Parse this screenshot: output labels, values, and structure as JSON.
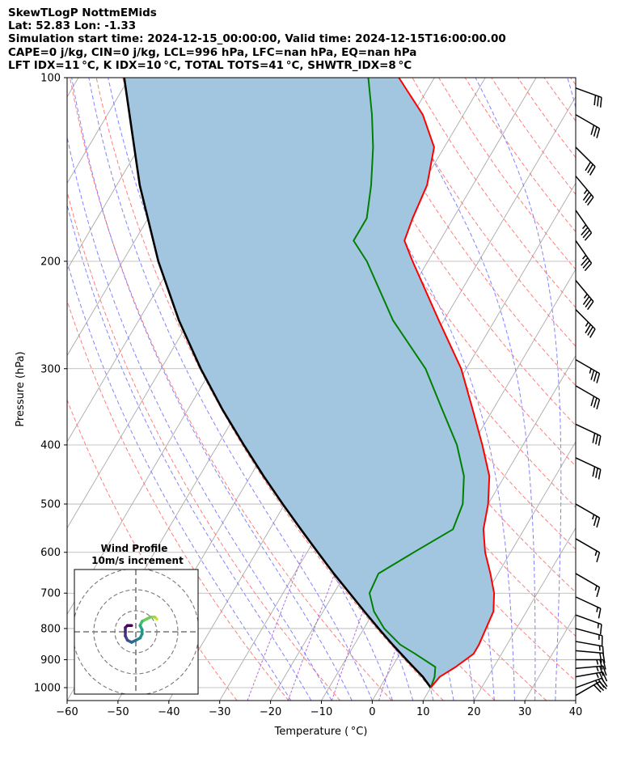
{
  "header": {
    "line1": "SkewTLogP NottmEMids",
    "line2": "Lat: 52.83   Lon: -1.33",
    "line3": "Simulation start time: 2024-12-15_00:00:00, Valid time: 2024-12-15T16:00:00.00",
    "line4": "CAPE=0 j/kg, CIN=0 j/kg, LCL=996 hPa, LFC=nan hPa, EQ=nan hPa",
    "line5": "LFT IDX=11 °C, K IDX=10 °C, TOTAL TOTS=41 °C, SHWTR_IDX=8 °C"
  },
  "chart_data": {
    "type": "line",
    "subtype": "skew-t log-p",
    "xlabel": "Temperature ( °C)",
    "ylabel": "Pressure (hPa)",
    "xlim": [
      -60,
      40
    ],
    "ylim": [
      1050,
      100
    ],
    "x_ticks": [
      "−60",
      "−50",
      "−40",
      "−30",
      "−20",
      "−10",
      "0",
      "10",
      "20",
      "30",
      "40"
    ],
    "y_ticks": [
      "1000",
      "900",
      "800",
      "700",
      "600",
      "500",
      "400",
      "300",
      "200",
      "100"
    ],
    "y_tick_values": [
      1000,
      900,
      800,
      700,
      600,
      500,
      400,
      300,
      200,
      100
    ],
    "grid": true,
    "colors": {
      "temperature": "#ff0000",
      "dewpoint": "#008000",
      "parcel": "#000000",
      "cape_fill": "#a3c6e0",
      "dry_adiabat": "#ff6666",
      "moist_adiabat": "#6d6dff",
      "mixing_ratio": "#9b4bcf",
      "isotherm": "#aaaaaa"
    },
    "series": [
      {
        "key": "temperature",
        "points": [
          [
            1000,
            10.0
          ],
          [
            960,
            10.5
          ],
          [
            925,
            12.5
          ],
          [
            880,
            14.5
          ],
          [
            850,
            14.5
          ],
          [
            800,
            14
          ],
          [
            750,
            13.5
          ],
          [
            700,
            11.5
          ],
          [
            650,
            8.5
          ],
          [
            600,
            5
          ],
          [
            550,
            2
          ],
          [
            500,
            0
          ],
          [
            450,
            -3
          ],
          [
            400,
            -8
          ],
          [
            350,
            -14
          ],
          [
            300,
            -21
          ],
          [
            250,
            -31
          ],
          [
            200,
            -43
          ],
          [
            185,
            -47
          ],
          [
            170,
            -48
          ],
          [
            150,
            -49
          ],
          [
            130,
            -52
          ],
          [
            115,
            -58
          ],
          [
            100,
            -67
          ]
        ]
      },
      {
        "key": "dewpoint",
        "points": [
          [
            1000,
            10.0
          ],
          [
            960,
            9.5
          ],
          [
            925,
            8.5
          ],
          [
            880,
            3
          ],
          [
            850,
            -1
          ],
          [
            800,
            -6
          ],
          [
            750,
            -10
          ],
          [
            700,
            -13
          ],
          [
            650,
            -13.5
          ],
          [
            600,
            -9
          ],
          [
            550,
            -4
          ],
          [
            500,
            -5
          ],
          [
            450,
            -8
          ],
          [
            400,
            -13
          ],
          [
            350,
            -20
          ],
          [
            300,
            -28
          ],
          [
            250,
            -40
          ],
          [
            200,
            -52
          ],
          [
            185,
            -57
          ],
          [
            170,
            -57
          ],
          [
            150,
            -60
          ],
          [
            130,
            -64
          ],
          [
            115,
            -68
          ],
          [
            100,
            -73
          ]
        ]
      },
      {
        "key": "parcel",
        "points": [
          [
            1000,
            10.0
          ],
          [
            960,
            7.2
          ],
          [
            925,
            4.2
          ],
          [
            900,
            2.0
          ],
          [
            850,
            -2.5
          ],
          [
            800,
            -7.1
          ],
          [
            750,
            -11.9
          ],
          [
            700,
            -16.9
          ],
          [
            650,
            -22.3
          ],
          [
            600,
            -27.9
          ],
          [
            550,
            -33.9
          ],
          [
            500,
            -40.4
          ],
          [
            450,
            -47.4
          ],
          [
            400,
            -54.9
          ],
          [
            350,
            -63.2
          ],
          [
            300,
            -72.2
          ],
          [
            250,
            -82.1
          ],
          [
            200,
            -93.0
          ],
          [
            150,
            -105.5
          ],
          [
            100,
            -121.0
          ]
        ]
      }
    ],
    "wind_barbs": [
      {
        "p": 1030,
        "speed_kt": 30,
        "dir": 240
      },
      {
        "p": 1000,
        "speed_kt": 30,
        "dir": 250
      },
      {
        "p": 960,
        "speed_kt": 25,
        "dir": 260
      },
      {
        "p": 930,
        "speed_kt": 25,
        "dir": 265
      },
      {
        "p": 900,
        "speed_kt": 25,
        "dir": 270
      },
      {
        "p": 870,
        "speed_kt": 20,
        "dir": 275
      },
      {
        "p": 840,
        "speed_kt": 15,
        "dir": 280
      },
      {
        "p": 800,
        "speed_kt": 15,
        "dir": 285
      },
      {
        "p": 760,
        "speed_kt": 15,
        "dir": 290
      },
      {
        "p": 710,
        "speed_kt": 15,
        "dir": 295
      },
      {
        "p": 650,
        "speed_kt": 15,
        "dir": 300
      },
      {
        "p": 570,
        "speed_kt": 15,
        "dir": 300
      },
      {
        "p": 500,
        "speed_kt": 25,
        "dir": 300
      },
      {
        "p": 420,
        "speed_kt": 30,
        "dir": 295
      },
      {
        "p": 370,
        "speed_kt": 30,
        "dir": 295
      },
      {
        "p": 320,
        "speed_kt": 30,
        "dir": 300
      },
      {
        "p": 290,
        "speed_kt": 35,
        "dir": 300
      },
      {
        "p": 240,
        "speed_kt": 35,
        "dir": 315
      },
      {
        "p": 215,
        "speed_kt": 35,
        "dir": 320
      },
      {
        "p": 185,
        "speed_kt": 35,
        "dir": 325
      },
      {
        "p": 165,
        "speed_kt": 35,
        "dir": 325
      },
      {
        "p": 145,
        "speed_kt": 35,
        "dir": 320
      },
      {
        "p": 130,
        "speed_kt": 30,
        "dir": 315
      },
      {
        "p": 115,
        "speed_kt": 30,
        "dir": 300
      },
      {
        "p": 104,
        "speed_kt": 30,
        "dir": 290
      }
    ],
    "hodograph": {
      "title": "Wind Profile",
      "subtitle": "10m/s increment",
      "ring_step_ms": 10,
      "points": [
        [
          10,
          -6
        ],
        [
          9,
          -7
        ],
        [
          7,
          -7
        ],
        [
          3,
          -5
        ],
        [
          2,
          -3
        ],
        [
          3,
          -1
        ],
        [
          3,
          1
        ],
        [
          2,
          3
        ],
        [
          0,
          4
        ],
        [
          -2,
          5
        ],
        [
          -4,
          4
        ],
        [
          -5,
          2
        ],
        [
          -5,
          0
        ],
        [
          -5,
          -2
        ],
        [
          -4,
          -3
        ],
        [
          -2,
          -3
        ]
      ]
    }
  }
}
